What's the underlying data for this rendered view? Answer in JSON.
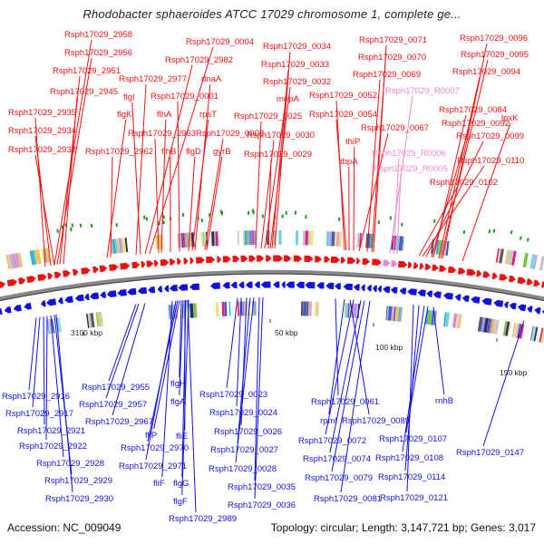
{
  "title": "Rhodobacter sphaeroides ATCC 17029 chromosome 1, complete ge...",
  "footer": {
    "accession": "Accession: NC_009049",
    "summary": "Topology: circular; Length: 3,147,721 bp; Genes: 3,017"
  },
  "colors": {
    "forward": "#ee1111",
    "reverse": "#1111dd",
    "rna": "#ee88cc",
    "backbone": "#888888"
  },
  "kbp_ticks": [
    "3100 kbp",
    "50 kbp",
    "100 kbp",
    "150 kbp"
  ],
  "labels_forward": [
    "Rsph17029_2958",
    "Rsph17029_2956",
    "Rsph17029_2951",
    "Rsph17029_2945",
    "Rsph17029_2935",
    "Rsph17029_2934",
    "Rsph17029_2932",
    "Rsph17029_2977",
    "Rsph17029_2982",
    "Rsph17029_0004",
    "flgI",
    "flgK",
    "Rsph17029_2963",
    "Rsph17029_2962",
    "flhA",
    "flhB",
    "Rsph17029_0001",
    "dnaA",
    "rpsT",
    "flgD",
    "Rsph17029_0008",
    "gyrB",
    "Rsph17029_0034",
    "Rsph17029_0033",
    "Rsph17029_0032",
    "mepA",
    "Rsph17029_0025",
    "Rsph17029_0030",
    "Rsph17029_0029",
    "Rsph17029_0071",
    "Rsph17029_0070",
    "Rsph17029_0069",
    "Rsph17029_0052",
    "Rsph17029_0054",
    "Rsph17029_0067",
    "thiP",
    "tbpA",
    "Rsph17029_0096",
    "Rsph17029_0095",
    "Rsph17029_0094",
    "Rsph17029_0084",
    "Rsph17029_0092",
    "Rsph17029_0099",
    "lpxK",
    "Rsph17029_0110",
    "Rsph17029_0102"
  ],
  "labels_rna": [
    "Rsph17029_R0007",
    "Rsph17029_R0006",
    "Rsph17029_R0005"
  ],
  "labels_reverse": [
    "Rsph17029_2916",
    "Rsph17029_2917",
    "Rsph17029_2921",
    "Rsph17029_2922",
    "Rsph17029_2928",
    "Rsph17029_2929",
    "Rsph17029_2930",
    "Rsph17029_2955",
    "Rsph17029_2957",
    "Rsph17029_2967",
    "flgH",
    "flgA",
    "fliP",
    "Rsph17029_2970",
    "fliE",
    "Rsph17029_2971",
    "fliF",
    "flgG",
    "flgF",
    "Rsph17029_2989",
    "Rsph17029_0023",
    "Rsph17029_0024",
    "Rsph17029_0026",
    "Rsph17029_0027",
    "Rsph17029_0028",
    "Rsph17029_0035",
    "Rsph17029_0036",
    "Rsph17029_0061",
    "rpmI",
    "Rsph17029_0089",
    "Rsph17029_0072",
    "Rsph17029_0074",
    "Rsph17029_0079",
    "Rsph17029_0081",
    "rnhB",
    "Rsph17029_0107",
    "Rsph17029_0108",
    "Rsph17029_0114",
    "Rsph17029_0121",
    "Rsph17029_0147"
  ]
}
